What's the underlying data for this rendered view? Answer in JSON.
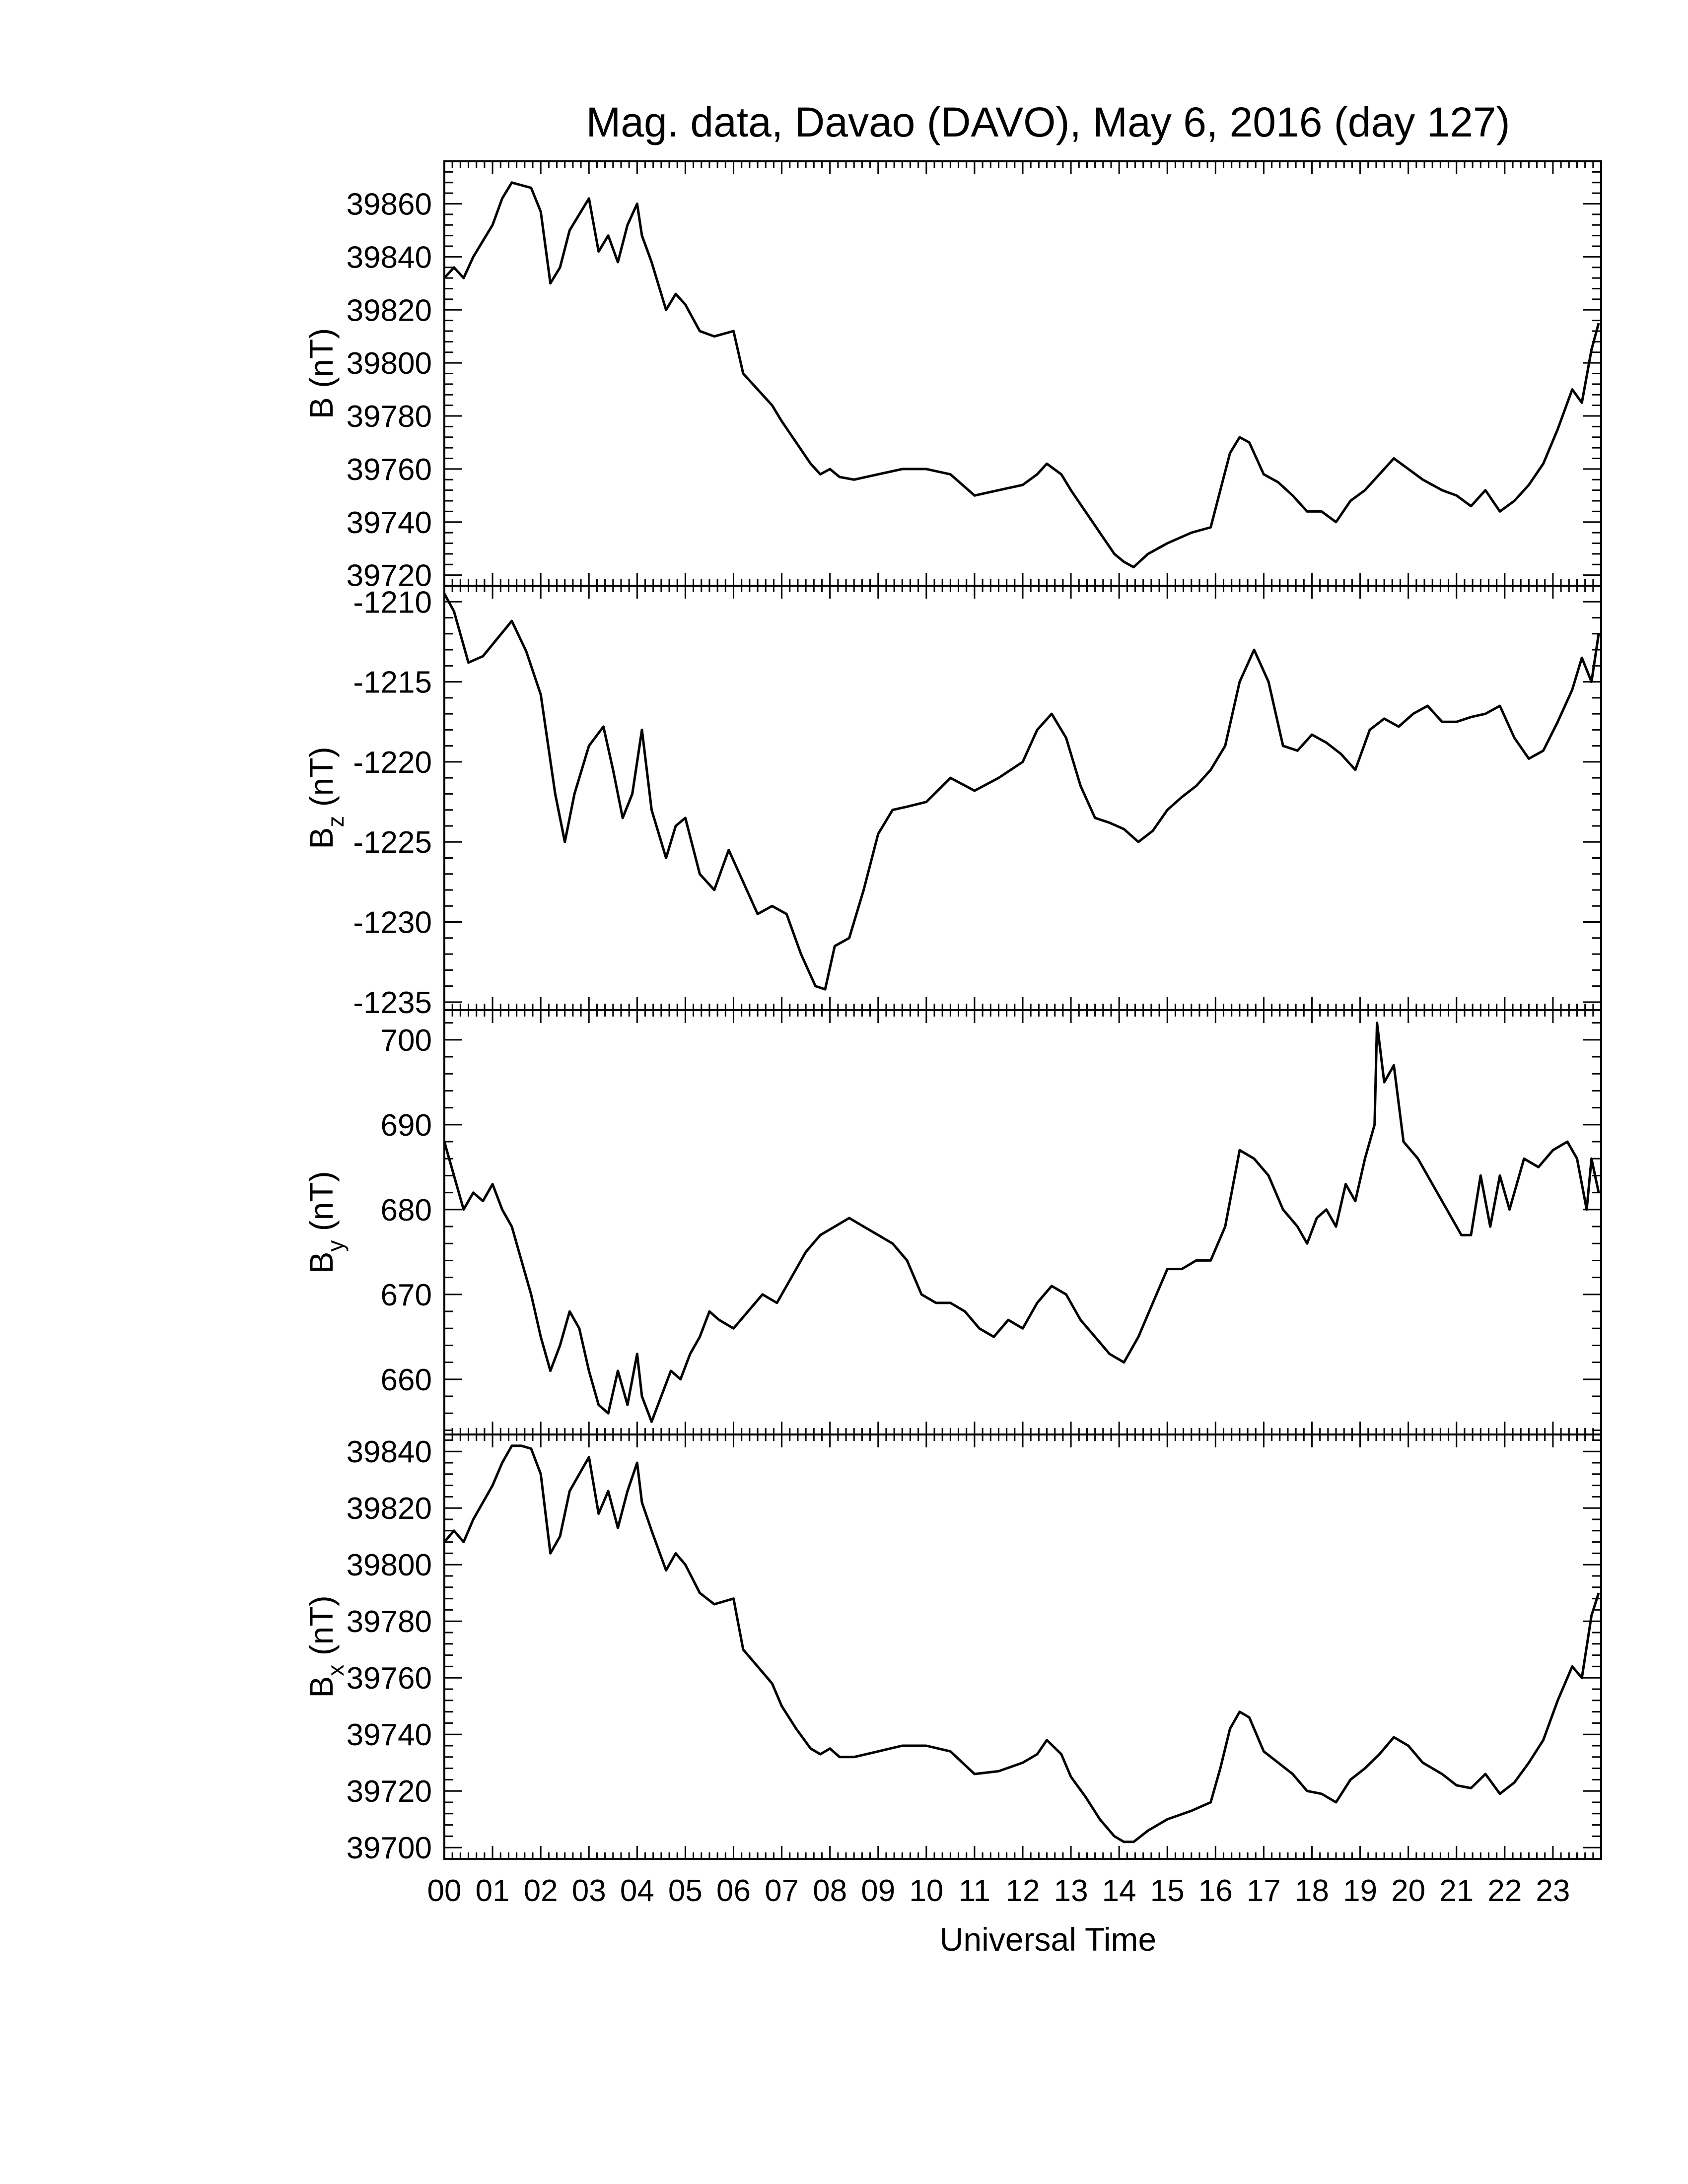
{
  "title": "Mag. data, Davao (DAVO), May 6, 2016 (day 127)",
  "chart_data": [
    {
      "type": "line",
      "ylabel": {
        "main": "B",
        "sub": "",
        "unit": "(nT)"
      },
      "ylim": [
        39716,
        39876
      ],
      "yticks": [
        "39720",
        "39740",
        "39760",
        "39780",
        "39800",
        "39820",
        "39840",
        "39860"
      ],
      "yticks_values": [
        39720,
        39740,
        39760,
        39780,
        39800,
        39820,
        39840,
        39860
      ],
      "color": "#000000",
      "series": [
        {
          "x": [
            0,
            0.2,
            0.4,
            0.6,
            0.8,
            1.0,
            1.2,
            1.4,
            1.6,
            1.8,
            2.0,
            2.2,
            2.4,
            2.6,
            2.8,
            3.0,
            3.2,
            3.4,
            3.6,
            3.8,
            4.0,
            4.1,
            4.3,
            4.6,
            4.8,
            5.0,
            5.3,
            5.6,
            6.0,
            6.2,
            6.5,
            6.8,
            7.0,
            7.3,
            7.6,
            7.8,
            8.0,
            8.2,
            8.5,
            9.0,
            9.5,
            10.0,
            10.5,
            11.0,
            11.5,
            12.0,
            12.3,
            12.5,
            12.8,
            13.0,
            13.3,
            13.6,
            13.9,
            14.1,
            14.3,
            14.6,
            15.0,
            15.5,
            15.9,
            16.1,
            16.3,
            16.5,
            16.7,
            17.0,
            17.3,
            17.6,
            17.9,
            18.2,
            18.5,
            18.8,
            19.1,
            19.4,
            19.7,
            20.0,
            20.3,
            20.7,
            21.0,
            21.3,
            21.6,
            21.9,
            22.2,
            22.5,
            22.8,
            23.1,
            23.4,
            23.6,
            23.8,
            23.95
          ],
          "values": [
            39832,
            39836,
            39832,
            39840,
            39846,
            39852,
            39862,
            39868,
            39867,
            39866,
            39857,
            39830,
            39836,
            39850,
            39856,
            39862,
            39842,
            39848,
            39838,
            39852,
            39860,
            39848,
            39838,
            39820,
            39826,
            39822,
            39812,
            39810,
            39812,
            39796,
            39790,
            39784,
            39778,
            39770,
            39762,
            39758,
            39760,
            39757,
            39756,
            39758,
            39760,
            39760,
            39758,
            39750,
            39752,
            39754,
            39758,
            39762,
            39758,
            39752,
            39744,
            39736,
            39728,
            39725,
            39723,
            39728,
            39732,
            39736,
            39738,
            39752,
            39766,
            39772,
            39770,
            39758,
            39755,
            39750,
            39744,
            39744,
            39740,
            39748,
            39752,
            39758,
            39764,
            39760,
            39756,
            39752,
            39750,
            39746,
            39752,
            39744,
            39748,
            39754,
            39762,
            39775,
            39790,
            39785,
            39805,
            39815
          ]
        }
      ]
    },
    {
      "type": "line",
      "ylabel": {
        "main": "B",
        "sub": "z",
        "unit": "(nT)"
      },
      "ylim": [
        -1235.5,
        -1209.0
      ],
      "yticks": [
        "-1235",
        "-1230",
        "-1225",
        "-1220",
        "-1215",
        "-1210"
      ],
      "yticks_values": [
        -1235,
        -1230,
        -1225,
        -1220,
        -1215,
        -1210
      ],
      "color": "#000000",
      "series": [
        {
          "x": [
            0,
            0.2,
            0.5,
            0.8,
            1.1,
            1.4,
            1.7,
            2.0,
            2.3,
            2.5,
            2.7,
            3.0,
            3.3,
            3.5,
            3.7,
            3.9,
            4.1,
            4.3,
            4.6,
            4.8,
            5.0,
            5.3,
            5.6,
            5.9,
            6.2,
            6.5,
            6.8,
            7.1,
            7.4,
            7.7,
            7.9,
            8.1,
            8.4,
            8.7,
            9.0,
            9.3,
            9.6,
            10.0,
            10.5,
            11.0,
            11.5,
            12.0,
            12.3,
            12.6,
            12.9,
            13.2,
            13.5,
            13.8,
            14.1,
            14.4,
            14.7,
            15.0,
            15.3,
            15.6,
            15.9,
            16.2,
            16.5,
            16.8,
            17.1,
            17.4,
            17.7,
            18.0,
            18.3,
            18.6,
            18.9,
            19.2,
            19.5,
            19.8,
            20.1,
            20.4,
            20.7,
            21.0,
            21.3,
            21.6,
            21.9,
            22.2,
            22.5,
            22.8,
            23.1,
            23.4,
            23.6,
            23.8,
            23.95
          ],
          "values": [
            -1209.5,
            -1210.6,
            -1213.8,
            -1213.4,
            -1212.3,
            -1211.2,
            -1213.1,
            -1215.8,
            -1222.0,
            -1225.0,
            -1222.0,
            -1219.0,
            -1217.8,
            -1220.5,
            -1223.5,
            -1222.0,
            -1218.0,
            -1223.0,
            -1226.0,
            -1224.0,
            -1223.5,
            -1227.0,
            -1228.0,
            -1225.5,
            -1227.5,
            -1229.5,
            -1229.0,
            -1229.5,
            -1232.0,
            -1234.0,
            -1234.2,
            -1231.5,
            -1231.0,
            -1228.0,
            -1224.5,
            -1223.0,
            -1222.8,
            -1222.5,
            -1221.0,
            -1221.8,
            -1221.0,
            -1220.0,
            -1218.0,
            -1217.0,
            -1218.5,
            -1221.5,
            -1223.5,
            -1223.8,
            -1224.2,
            -1225.0,
            -1224.3,
            -1223.0,
            -1222.2,
            -1221.5,
            -1220.5,
            -1219.0,
            -1215.0,
            -1213.0,
            -1215.0,
            -1219.0,
            -1219.3,
            -1218.3,
            -1218.8,
            -1219.5,
            -1220.5,
            -1218.0,
            -1217.3,
            -1217.8,
            -1217.0,
            -1216.5,
            -1217.5,
            -1217.5,
            -1217.2,
            -1217.0,
            -1216.5,
            -1218.5,
            -1219.8,
            -1219.3,
            -1217.5,
            -1215.5,
            -1213.5,
            -1215.0,
            -1212.0
          ]
        }
      ]
    },
    {
      "type": "line",
      "ylabel": {
        "main": "B",
        "sub": "y",
        "unit": "(nT)"
      },
      "ylim": [
        653.5,
        703.5
      ],
      "yticks": [
        "660",
        "670",
        "680",
        "690",
        "700"
      ],
      "yticks_values": [
        660,
        670,
        680,
        690,
        700
      ],
      "color": "#000000",
      "series": [
        {
          "x": [
            0,
            0.2,
            0.4,
            0.6,
            0.8,
            1.0,
            1.2,
            1.4,
            1.6,
            1.8,
            2.0,
            2.2,
            2.4,
            2.6,
            2.8,
            3.0,
            3.2,
            3.4,
            3.6,
            3.8,
            4.0,
            4.1,
            4.3,
            4.5,
            4.7,
            4.9,
            5.1,
            5.3,
            5.5,
            5.7,
            6.0,
            6.3,
            6.6,
            6.9,
            7.2,
            7.5,
            7.8,
            8.1,
            8.4,
            8.7,
            9.0,
            9.3,
            9.6,
            9.9,
            10.2,
            10.5,
            10.8,
            11.1,
            11.4,
            11.7,
            12.0,
            12.3,
            12.6,
            12.9,
            13.2,
            13.5,
            13.8,
            14.1,
            14.4,
            14.7,
            15.0,
            15.3,
            15.6,
            15.9,
            16.2,
            16.5,
            16.8,
            17.1,
            17.4,
            17.7,
            17.9,
            18.1,
            18.3,
            18.5,
            18.7,
            18.9,
            19.1,
            19.3,
            19.35,
            19.5,
            19.7,
            19.9,
            20.2,
            20.5,
            20.8,
            21.1,
            21.3,
            21.5,
            21.7,
            21.9,
            22.1,
            22.4,
            22.7,
            23.0,
            23.3,
            23.5,
            23.7,
            23.8,
            23.95
          ],
          "values": [
            688,
            684,
            680,
            682,
            681,
            683,
            680,
            678,
            674,
            670,
            665,
            661,
            664,
            668,
            666,
            661,
            657,
            656,
            661,
            657,
            663,
            658,
            655,
            658,
            661,
            660,
            663,
            665,
            668,
            667,
            666,
            668,
            670,
            669,
            672,
            675,
            677,
            678,
            679,
            678,
            677,
            676,
            674,
            670,
            669,
            669,
            668,
            666,
            665,
            667,
            666,
            669,
            671,
            670,
            667,
            665,
            663,
            662,
            665,
            669,
            673,
            673,
            674,
            674,
            678,
            687,
            686,
            684,
            680,
            678,
            676,
            679,
            680,
            678,
            683,
            681,
            686,
            690,
            702,
            695,
            697,
            688,
            686,
            683,
            680,
            677,
            677,
            684,
            678,
            684,
            680,
            686,
            685,
            687,
            688,
            686,
            680,
            686,
            682
          ]
        }
      ]
    },
    {
      "type": "line",
      "ylabel": {
        "main": "B",
        "sub": "x",
        "unit": "(nT)"
      },
      "ylim": [
        39696,
        39846
      ],
      "yticks": [
        "39700",
        "39720",
        "39740",
        "39760",
        "39780",
        "39800",
        "39820",
        "39840"
      ],
      "yticks_values": [
        39700,
        39720,
        39740,
        39760,
        39780,
        39800,
        39820,
        39840
      ],
      "color": "#000000",
      "series": [
        {
          "x": [
            0,
            0.2,
            0.4,
            0.6,
            0.8,
            1.0,
            1.2,
            1.4,
            1.6,
            1.8,
            2.0,
            2.2,
            2.4,
            2.6,
            2.8,
            3.0,
            3.2,
            3.4,
            3.6,
            3.8,
            4.0,
            4.1,
            4.3,
            4.6,
            4.8,
            5.0,
            5.3,
            5.6,
            6.0,
            6.2,
            6.5,
            6.8,
            7.0,
            7.3,
            7.6,
            7.8,
            8.0,
            8.2,
            8.5,
            9.0,
            9.5,
            10.0,
            10.5,
            11.0,
            11.5,
            12.0,
            12.3,
            12.5,
            12.8,
            13.0,
            13.3,
            13.6,
            13.9,
            14.1,
            14.3,
            14.6,
            15.0,
            15.5,
            15.9,
            16.1,
            16.3,
            16.5,
            16.7,
            17.0,
            17.3,
            17.6,
            17.9,
            18.2,
            18.5,
            18.8,
            19.1,
            19.4,
            19.7,
            20.0,
            20.3,
            20.7,
            21.0,
            21.3,
            21.6,
            21.9,
            22.2,
            22.5,
            22.8,
            23.1,
            23.4,
            23.6,
            23.8,
            23.95
          ],
          "values": [
            39808,
            39812,
            39808,
            39816,
            39822,
            39828,
            39836,
            39842,
            39842,
            39841,
            39832,
            39804,
            39810,
            39826,
            39832,
            39838,
            39818,
            39826,
            39813,
            39826,
            39836,
            39822,
            39812,
            39798,
            39804,
            39800,
            39790,
            39786,
            39788,
            39770,
            39764,
            39758,
            39750,
            39742,
            39735,
            39733,
            39735,
            39732,
            39732,
            39734,
            39736,
            39736,
            39734,
            39726,
            39727,
            39730,
            39733,
            39738,
            39733,
            39725,
            39718,
            39710,
            39704,
            39702,
            39702,
            39706,
            39710,
            39713,
            39716,
            39728,
            39742,
            39748,
            39746,
            39734,
            39730,
            39726,
            39720,
            39719,
            39716,
            39724,
            39728,
            39733,
            39739,
            39736,
            39730,
            39726,
            39722,
            39721,
            39726,
            39719,
            39723,
            39730,
            39738,
            39752,
            39764,
            39760,
            39782,
            39790
          ]
        }
      ]
    }
  ],
  "xaxis": {
    "xlabel": "Universal Time",
    "xlim": [
      0,
      24
    ],
    "ticks": [
      "00",
      "01",
      "02",
      "03",
      "04",
      "05",
      "06",
      "07",
      "08",
      "09",
      "10",
      "11",
      "12",
      "13",
      "14",
      "15",
      "16",
      "17",
      "18",
      "19",
      "20",
      "21",
      "22",
      "23"
    ],
    "ticks_values": [
      0,
      1,
      2,
      3,
      4,
      5,
      6,
      7,
      8,
      9,
      10,
      11,
      12,
      13,
      14,
      15,
      16,
      17,
      18,
      19,
      20,
      21,
      22,
      23
    ]
  }
}
